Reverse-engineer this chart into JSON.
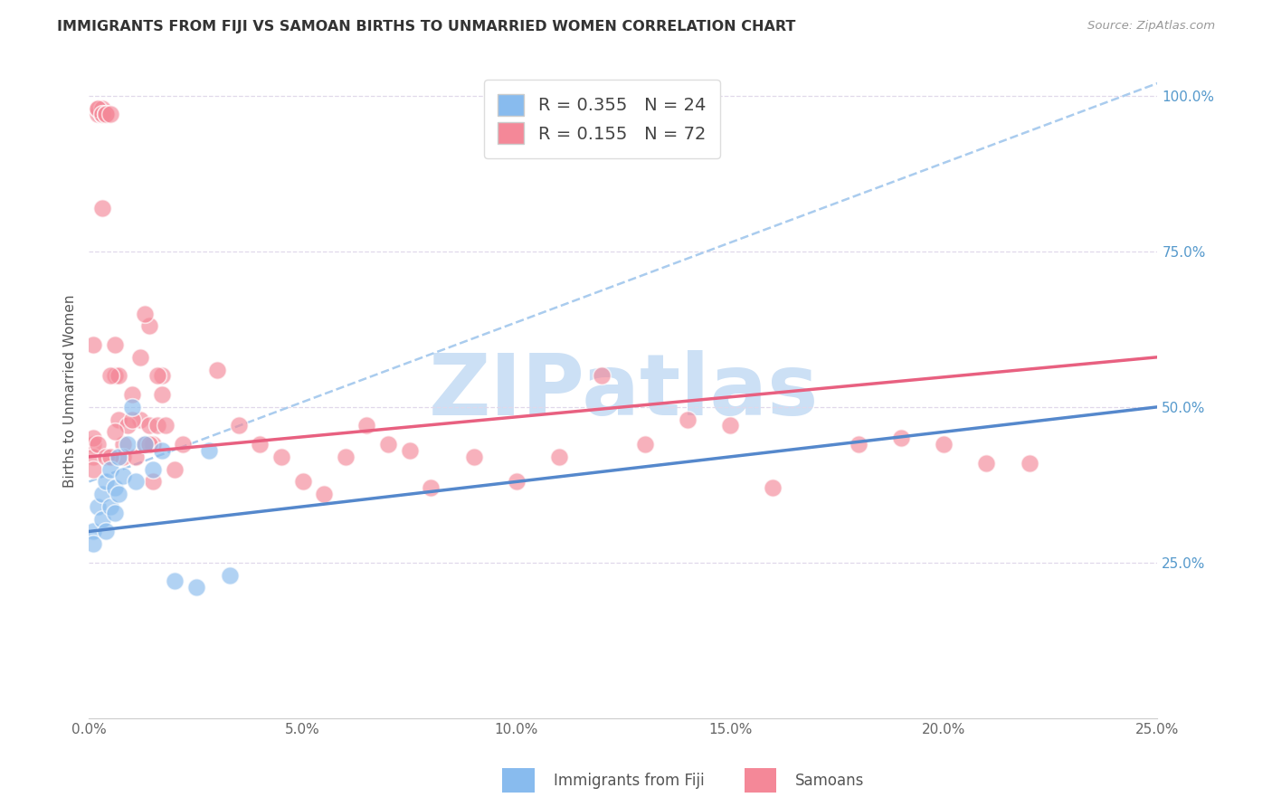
{
  "title": "IMMIGRANTS FROM FIJI VS SAMOAN BIRTHS TO UNMARRIED WOMEN CORRELATION CHART",
  "source": "Source: ZipAtlas.com",
  "ylabel": "Births to Unmarried Women",
  "xlabel_legend1": "Immigrants from Fiji",
  "xlabel_legend2": "Samoans",
  "xmin": 0.0,
  "xmax": 0.25,
  "ymin": 0.0,
  "ymax": 1.05,
  "xtick_labels": [
    "0.0%",
    "5.0%",
    "10.0%",
    "15.0%",
    "20.0%",
    "25.0%"
  ],
  "xtick_vals": [
    0.0,
    0.05,
    0.1,
    0.15,
    0.2,
    0.25
  ],
  "ytick_labels": [
    "25.0%",
    "50.0%",
    "75.0%",
    "100.0%"
  ],
  "ytick_vals": [
    0.25,
    0.5,
    0.75,
    1.0
  ],
  "r_fiji": 0.355,
  "n_fiji": 24,
  "r_samoan": 0.155,
  "n_samoan": 72,
  "color_fiji": "#88bbee",
  "color_samoan": "#f48898",
  "color_fiji_line": "#5588cc",
  "color_samoan_line": "#e86080",
  "color_ref_line": "#aaccee",
  "watermark": "ZIPatlas",
  "watermark_color": "#cce0f5",
  "fiji_x": [
    0.001,
    0.001,
    0.002,
    0.003,
    0.003,
    0.004,
    0.004,
    0.005,
    0.005,
    0.006,
    0.006,
    0.007,
    0.007,
    0.008,
    0.009,
    0.01,
    0.011,
    0.013,
    0.015,
    0.017,
    0.02,
    0.025,
    0.028,
    0.033
  ],
  "fiji_y": [
    0.3,
    0.28,
    0.34,
    0.32,
    0.36,
    0.3,
    0.38,
    0.34,
    0.4,
    0.33,
    0.37,
    0.36,
    0.42,
    0.39,
    0.44,
    0.5,
    0.38,
    0.44,
    0.4,
    0.43,
    0.22,
    0.21,
    0.43,
    0.23
  ],
  "samoan_x": [
    0.01,
    0.012,
    0.014,
    0.014,
    0.015,
    0.016,
    0.017,
    0.002,
    0.002,
    0.003,
    0.003,
    0.003,
    0.003,
    0.002,
    0.003,
    0.003,
    0.004,
    0.004,
    0.005,
    0.006,
    0.006,
    0.007,
    0.007,
    0.008,
    0.008,
    0.009,
    0.01,
    0.011,
    0.012,
    0.013,
    0.013,
    0.014,
    0.015,
    0.016,
    0.017,
    0.018,
    0.02,
    0.022,
    0.001,
    0.001,
    0.001,
    0.001,
    0.001,
    0.002,
    0.004,
    0.005,
    0.005,
    0.006,
    0.03,
    0.035,
    0.04,
    0.045,
    0.05,
    0.055,
    0.06,
    0.065,
    0.07,
    0.075,
    0.08,
    0.09,
    0.1,
    0.11,
    0.12,
    0.13,
    0.14,
    0.15,
    0.16,
    0.18,
    0.19,
    0.2,
    0.21,
    0.22
  ],
  "samoan_y": [
    0.52,
    0.48,
    0.47,
    0.63,
    0.44,
    0.47,
    0.55,
    0.97,
    0.98,
    0.97,
    0.97,
    0.98,
    0.97,
    0.98,
    0.97,
    0.82,
    0.97,
    0.97,
    0.97,
    0.55,
    0.6,
    0.48,
    0.55,
    0.44,
    0.42,
    0.47,
    0.48,
    0.42,
    0.58,
    0.44,
    0.65,
    0.44,
    0.38,
    0.55,
    0.52,
    0.47,
    0.4,
    0.44,
    0.44,
    0.42,
    0.4,
    0.45,
    0.6,
    0.44,
    0.42,
    0.55,
    0.42,
    0.46,
    0.56,
    0.47,
    0.44,
    0.42,
    0.38,
    0.36,
    0.42,
    0.47,
    0.44,
    0.43,
    0.37,
    0.42,
    0.38,
    0.42,
    0.55,
    0.44,
    0.48,
    0.47,
    0.37,
    0.44,
    0.45,
    0.44,
    0.41,
    0.41
  ],
  "fiji_trend_x0": 0.0,
  "fiji_trend_y0": 0.3,
  "fiji_trend_x1": 0.25,
  "fiji_trend_y1": 0.5,
  "samoan_trend_x0": 0.0,
  "samoan_trend_y0": 0.42,
  "samoan_trend_x1": 0.25,
  "samoan_trend_y1": 0.58,
  "ref_line_x0": 0.0,
  "ref_line_y0": 0.38,
  "ref_line_x1": 0.25,
  "ref_line_y1": 1.02
}
